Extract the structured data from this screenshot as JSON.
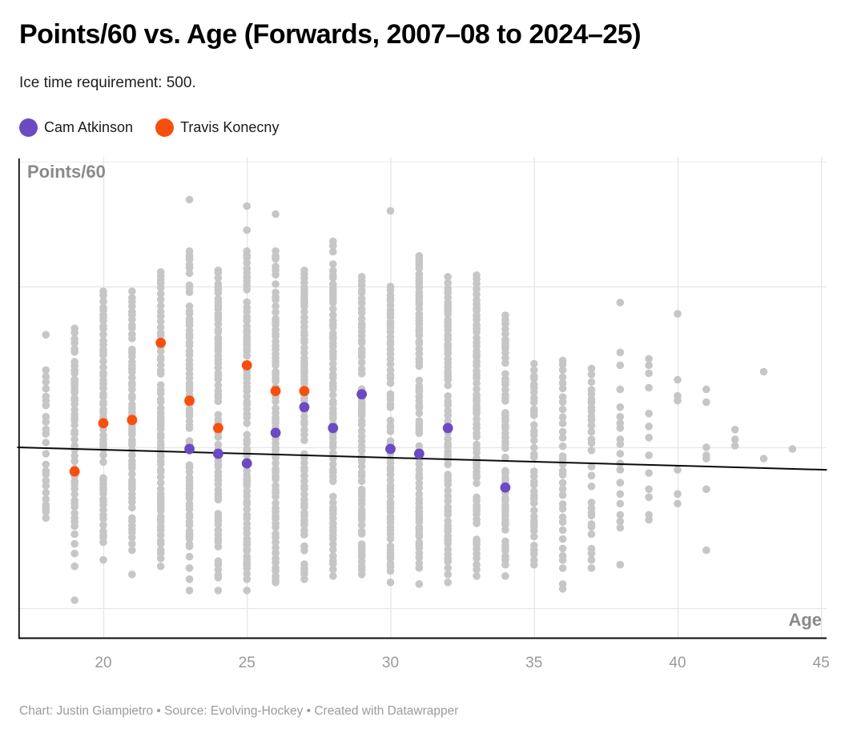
{
  "header": {
    "title": "Points/60 vs. Age (Forwards, 2007–08 to 2024–25)",
    "subtitle": "Ice time requirement: 500."
  },
  "legend": {
    "items": [
      {
        "label": "Cam Atkinson",
        "color": "#6A4BC4"
      },
      {
        "label": "Travis Konecny",
        "color": "#F94F0C"
      }
    ]
  },
  "footer": {
    "text": "Chart: Justin Giampietro • Source: Evolving-Hockey • Created with Datawrapper"
  },
  "chart_data": {
    "type": "scatter",
    "title": "Points/60 vs. Age (Forwards, 2007–08 to 2024–25)",
    "subtitle": "Ice time requirement: 500.",
    "xlabel": "Age",
    "ylabel": "Points/60",
    "x_ticks": [
      20,
      25,
      30,
      35,
      40,
      45
    ],
    "xlim": [
      17.0,
      45.2
    ],
    "ylim": [
      0.81,
      3.8
    ],
    "y_gridline_values": [
      1.0,
      2.0,
      3.0
    ],
    "grid": true,
    "legend_position": "top-left",
    "background_color": "#C6C6C6",
    "series": [
      {
        "name": "Cam Atkinson",
        "color": "#6A4BC4",
        "points": [
          [
            23,
            1.99
          ],
          [
            24,
            1.96
          ],
          [
            25,
            1.9
          ],
          [
            26,
            2.09
          ],
          [
            27,
            2.25
          ],
          [
            28,
            2.12
          ],
          [
            29,
            2.33
          ],
          [
            30,
            1.99
          ],
          [
            31,
            1.96
          ],
          [
            32,
            2.12
          ],
          [
            34,
            1.75
          ]
        ]
      },
      {
        "name": "Travis Konecny",
        "color": "#F94F0C",
        "points": [
          [
            19,
            1.85
          ],
          [
            20,
            2.15
          ],
          [
            21,
            2.17
          ],
          [
            22,
            2.65
          ],
          [
            23,
            2.29
          ],
          [
            24,
            2.12
          ],
          [
            25,
            2.51
          ],
          [
            26,
            2.35
          ],
          [
            27,
            2.35
          ]
        ]
      }
    ],
    "background_columns": [
      {
        "age": 18,
        "runs": [
          {
            "from": 2.48,
            "to": 2.26,
            "n": 7
          },
          {
            "from": 2.19,
            "to": 2.03,
            "n": 5
          },
          {
            "from": 1.96,
            "to": 1.56,
            "n": 12
          }
        ],
        "dots": [
          2.7
        ]
      },
      {
        "age": 19,
        "runs": [
          {
            "from": 2.74,
            "to": 1.51,
            "n": 45
          }
        ],
        "dots": [
          1.46,
          1.4,
          1.34,
          1.26,
          1.05
        ]
      },
      {
        "age": 20,
        "runs": [
          {
            "from": 2.97,
            "to": 1.41,
            "n": 57
          }
        ],
        "dots": [
          1.3
        ]
      },
      {
        "age": 21,
        "runs": [
          {
            "from": 2.97,
            "to": 1.47,
            "n": 55
          }
        ],
        "dots": [
          1.44,
          1.4,
          1.36,
          1.21
        ]
      },
      {
        "age": 22,
        "runs": [
          {
            "from": 3.09,
            "to": 1.26,
            "n": 67
          }
        ],
        "dots": []
      },
      {
        "age": 23,
        "runs": [
          {
            "from": 3.22,
            "to": 1.32,
            "n": 69
          }
        ],
        "dots": [
          3.54,
          1.25,
          1.18,
          1.11
        ]
      },
      {
        "age": 24,
        "runs": [
          {
            "from": 3.1,
            "to": 1.19,
            "n": 70
          }
        ],
        "dots": [
          1.11
        ]
      },
      {
        "age": 25,
        "runs": [
          {
            "from": 3.22,
            "to": 1.18,
            "n": 75
          }
        ],
        "dots": [
          3.5,
          3.35,
          1.11
        ]
      },
      {
        "age": 26,
        "runs": [
          {
            "from": 3.22,
            "to": 1.16,
            "n": 75
          }
        ],
        "dots": [
          3.45
        ]
      },
      {
        "age": 27,
        "runs": [
          {
            "from": 3.1,
            "to": 1.18,
            "n": 70
          }
        ],
        "dots": []
      },
      {
        "age": 28,
        "runs": [
          {
            "from": 3.28,
            "to": 1.2,
            "n": 72
          }
        ],
        "dots": []
      },
      {
        "age": 29,
        "runs": [
          {
            "from": 3.06,
            "to": 1.21,
            "n": 67
          }
        ],
        "dots": []
      },
      {
        "age": 30,
        "runs": [
          {
            "from": 3.0,
            "to": 1.16,
            "n": 67
          }
        ],
        "dots": [
          3.47
        ]
      },
      {
        "age": 31,
        "runs": [
          {
            "from": 3.19,
            "to": 1.15,
            "n": 75
          }
        ],
        "dots": []
      },
      {
        "age": 32,
        "runs": [
          {
            "from": 3.06,
            "to": 1.31,
            "n": 64
          }
        ],
        "dots": [
          1.29,
          1.25,
          1.21,
          1.16
        ]
      },
      {
        "age": 33,
        "runs": [
          {
            "from": 3.07,
            "to": 1.31,
            "n": 64
          }
        ],
        "dots": [
          1.27,
          1.24,
          1.2
        ]
      },
      {
        "age": 34,
        "runs": [
          {
            "from": 2.82,
            "to": 1.3,
            "n": 56
          }
        ],
        "dots": [
          1.27,
          1.2
        ]
      },
      {
        "age": 35,
        "runs": [
          {
            "from": 2.52,
            "to": 1.3,
            "n": 38
          }
        ],
        "dots": [
          1.27
        ]
      },
      {
        "age": 36,
        "runs": [
          {
            "from": 2.54,
            "to": 1.15,
            "n": 33
          }
        ],
        "dots": [
          1.12
        ]
      },
      {
        "age": 37,
        "runs": [
          {
            "from": 2.49,
            "to": 1.46,
            "n": 26
          }
        ],
        "dots": [
          1.37,
          1.34,
          1.3,
          1.25
        ]
      },
      {
        "age": 38,
        "runs": [],
        "dots": [
          2.9,
          2.59,
          2.51,
          2.36,
          2.25,
          2.19,
          2.15,
          2.12,
          2.05,
          2.02,
          1.96,
          1.9,
          1.86,
          1.78,
          1.71,
          1.65,
          1.58,
          1.54,
          1.5,
          1.27
        ]
      },
      {
        "age": 39,
        "runs": [],
        "dots": [
          2.55,
          2.51,
          2.46,
          2.37,
          2.21,
          2.13,
          2.06,
          1.95,
          1.84,
          1.74,
          1.69,
          1.58,
          1.55
        ]
      },
      {
        "age": 40,
        "runs": [],
        "dots": [
          2.83,
          2.42,
          2.32,
          2.29,
          1.86,
          1.71,
          1.65
        ]
      },
      {
        "age": 41,
        "runs": [],
        "dots": [
          2.36,
          2.28,
          2.0,
          1.95,
          1.93,
          1.74,
          1.36
        ]
      },
      {
        "age": 42,
        "runs": [],
        "dots": [
          2.11,
          2.05,
          2.01
        ]
      },
      {
        "age": 43,
        "runs": [],
        "dots": [
          2.47,
          1.93
        ]
      },
      {
        "age": 44,
        "runs": [],
        "dots": [
          1.99
        ]
      }
    ],
    "trend_line": {
      "color": "#0a0a0a",
      "points": [
        [
          17.0,
          2.0
        ],
        [
          45.2,
          1.86
        ]
      ]
    }
  }
}
